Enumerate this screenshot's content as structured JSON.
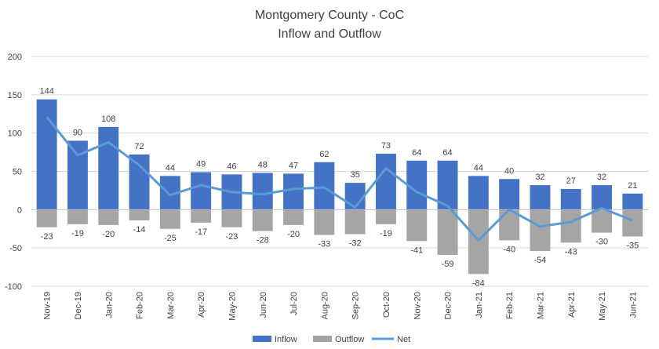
{
  "chart_data": {
    "type": "bar",
    "title": "Montgomery County - CoC",
    "subtitle": "Inflow and Outflow",
    "categories": [
      "Nov-19",
      "Dec-19",
      "Jan-20",
      "Feb-20",
      "Mar-20",
      "Apr-20",
      "May-20",
      "Jun-20",
      "Jul-20",
      "Aug-20",
      "Sep-20",
      "Oct-20",
      "Nov-20",
      "Dec-20",
      "Jan-21",
      "Feb-21",
      "Mar-21",
      "Apr-21",
      "May-21",
      "Jun-21"
    ],
    "series": [
      {
        "name": "Inflow",
        "kind": "bar",
        "color": "#4472C4",
        "values": [
          144,
          90,
          108,
          72,
          44,
          49,
          46,
          48,
          47,
          62,
          35,
          73,
          64,
          64,
          44,
          40,
          32,
          27,
          32,
          21
        ]
      },
      {
        "name": "Outflow",
        "kind": "bar",
        "color": "#A5A5A5",
        "values": [
          -23,
          -19,
          -20,
          -14,
          -25,
          -17,
          -23,
          -28,
          -20,
          -33,
          -32,
          -19,
          -41,
          -59,
          -84,
          -40,
          -54,
          -43,
          -30,
          -35
        ]
      },
      {
        "name": "Net",
        "kind": "line",
        "color": "#5B9BD5",
        "values": [
          121,
          71,
          88,
          58,
          19,
          32,
          23,
          20,
          27,
          29,
          3,
          54,
          23,
          5,
          -40,
          0,
          -22,
          -16,
          2,
          -14
        ]
      }
    ],
    "ylim": [
      -100,
      200
    ],
    "yticks": [
      -100,
      -50,
      0,
      50,
      100,
      150,
      200
    ],
    "grid": true,
    "legend_position": "bottom"
  }
}
